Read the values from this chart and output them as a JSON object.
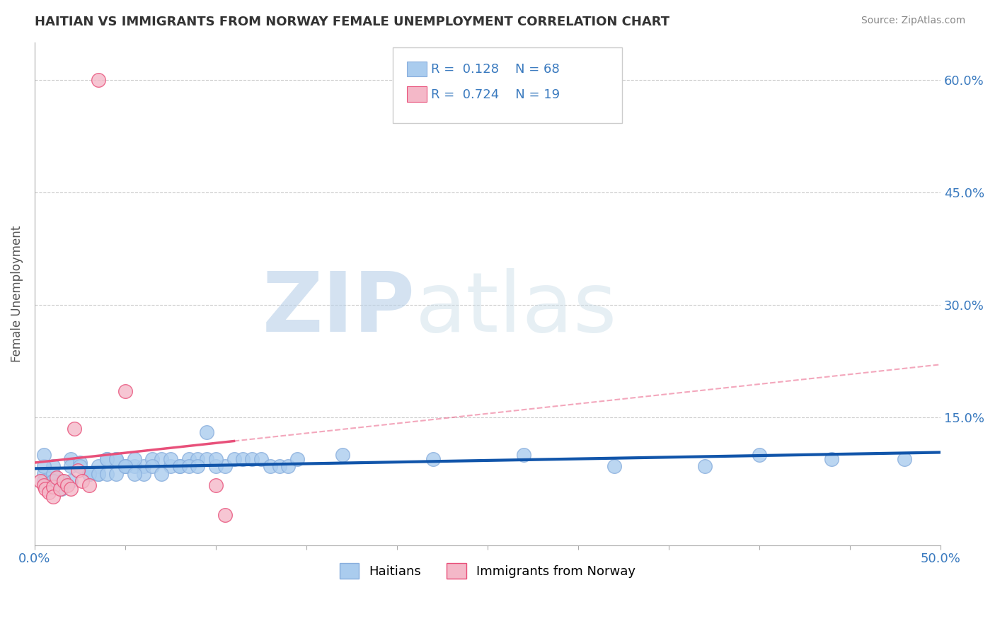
{
  "title": "HAITIAN VS IMMIGRANTS FROM NORWAY FEMALE UNEMPLOYMENT CORRELATION CHART",
  "source": "Source: ZipAtlas.com",
  "ylabel": "Female Unemployment",
  "xlim": [
    0.0,
    0.5
  ],
  "ylim": [
    -0.02,
    0.65
  ],
  "xticks": [
    0.0,
    0.05,
    0.1,
    0.15,
    0.2,
    0.25,
    0.3,
    0.35,
    0.4,
    0.45,
    0.5
  ],
  "xticklabels": [
    "0.0%",
    "",
    "",
    "",
    "",
    "",
    "",
    "",
    "",
    "",
    "50.0%"
  ],
  "ytick_positions": [
    0.15,
    0.3,
    0.45,
    0.6
  ],
  "yticklabels": [
    "15.0%",
    "30.0%",
    "45.0%",
    "60.0%"
  ],
  "grid_color": "#cccccc",
  "background_color": "#ffffff",
  "watermark_text": "ZIP",
  "watermark_text2": "atlas",
  "series": [
    {
      "name": "Haitians",
      "R": 0.128,
      "N": 68,
      "color": "#aaccee",
      "line_color": "#1155aa",
      "marker_edge": "#88aedd",
      "x": [
        0.005,
        0.01,
        0.005,
        0.02,
        0.005,
        0.01,
        0.015,
        0.005,
        0.01,
        0.02,
        0.025,
        0.03,
        0.035,
        0.02,
        0.04,
        0.03,
        0.025,
        0.045,
        0.035,
        0.015,
        0.05,
        0.04,
        0.03,
        0.01,
        0.055,
        0.035,
        0.045,
        0.06,
        0.04,
        0.065,
        0.05,
        0.07,
        0.045,
        0.075,
        0.055,
        0.08,
        0.06,
        0.085,
        0.05,
        0.09,
        0.065,
        0.095,
        0.07,
        0.1,
        0.075,
        0.105,
        0.055,
        0.11,
        0.08,
        0.115,
        0.085,
        0.12,
        0.09,
        0.125,
        0.13,
        0.095,
        0.135,
        0.1,
        0.14,
        0.145,
        0.17,
        0.22,
        0.27,
        0.32,
        0.37,
        0.4,
        0.44,
        0.48
      ],
      "y": [
        0.075,
        0.085,
        0.065,
        0.095,
        0.085,
        0.075,
        0.055,
        0.1,
        0.065,
        0.085,
        0.09,
        0.075,
        0.085,
        0.065,
        0.095,
        0.075,
        0.085,
        0.095,
        0.075,
        0.065,
        0.085,
        0.095,
        0.075,
        0.065,
        0.085,
        0.075,
        0.095,
        0.085,
        0.075,
        0.095,
        0.085,
        0.095,
        0.075,
        0.085,
        0.095,
        0.085,
        0.075,
        0.095,
        0.085,
        0.095,
        0.085,
        0.095,
        0.075,
        0.085,
        0.095,
        0.085,
        0.075,
        0.095,
        0.085,
        0.095,
        0.085,
        0.095,
        0.085,
        0.095,
        0.085,
        0.13,
        0.085,
        0.095,
        0.085,
        0.095,
        0.1,
        0.095,
        0.1,
        0.085,
        0.085,
        0.1,
        0.095,
        0.095
      ]
    },
    {
      "name": "Immigrants from Norway",
      "R": 0.724,
      "N": 19,
      "color": "#f4b8c8",
      "line_color": "#e8507a",
      "marker_edge": "#e8507a",
      "x": [
        0.003,
        0.005,
        0.006,
        0.008,
        0.01,
        0.01,
        0.012,
        0.014,
        0.016,
        0.018,
        0.02,
        0.022,
        0.024,
        0.026,
        0.03,
        0.035,
        0.05,
        0.1,
        0.105
      ],
      "y": [
        0.065,
        0.06,
        0.055,
        0.05,
        0.058,
        0.045,
        0.07,
        0.055,
        0.065,
        0.06,
        0.055,
        0.135,
        0.08,
        0.065,
        0.06,
        0.6,
        0.185,
        0.06,
        0.02
      ]
    }
  ]
}
